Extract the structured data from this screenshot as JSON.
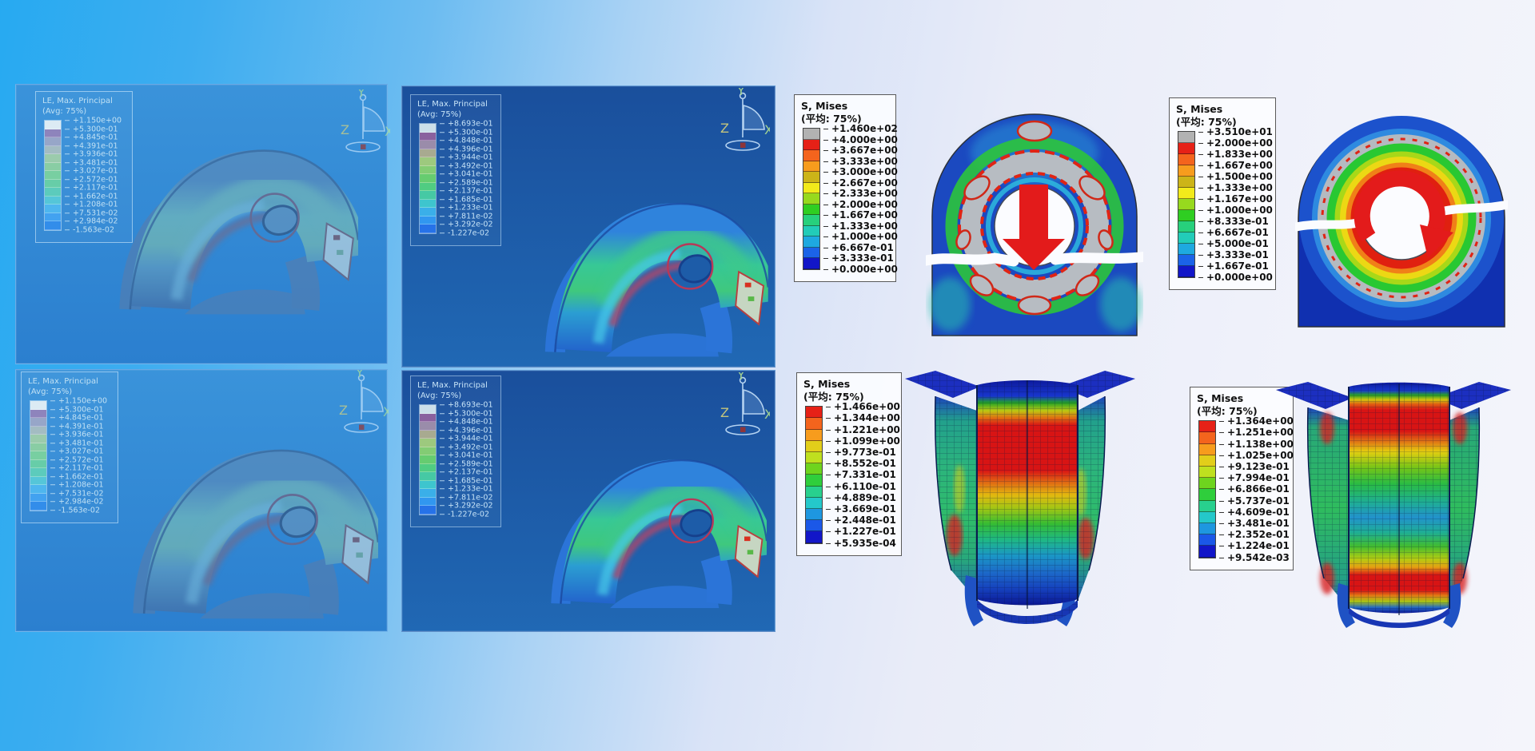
{
  "axis_triad": {
    "x": "X",
    "y": "Y",
    "z": "Z"
  },
  "viewports": [
    {
      "id": "top-left",
      "legend": {
        "title": "LE, Max. Principal",
        "subtitle": "(Avg: 75%)",
        "values": [
          "+1.150e+00",
          "+5.300e-01",
          "+4.845e-01",
          "+4.391e-01",
          "+3.936e-01",
          "+3.481e-01",
          "+3.027e-01",
          "+2.572e-01",
          "+2.117e-01",
          "+1.662e-01",
          "+1.208e-01",
          "+7.531e-02",
          "+2.984e-02",
          "-1.563e-02"
        ],
        "colors": [
          "#dcebf4",
          "#8e84bc",
          "#97a6c8",
          "#a3bcc2",
          "#9bcbac",
          "#89cda4",
          "#78cfa1",
          "#67cda8",
          "#5ccbbc",
          "#55c6d8",
          "#4eb6ee",
          "#42a2f0",
          "#328dea"
        ]
      }
    },
    {
      "id": "top-middle",
      "legend": {
        "title": "LE, Max. Principal",
        "subtitle": "(Avg: 75%)",
        "values": [
          "+8.693e-01",
          "+5.300e-01",
          "+4.848e-01",
          "+4.396e-01",
          "+3.944e-01",
          "+3.492e-01",
          "+3.041e-01",
          "+2.589e-01",
          "+2.137e-01",
          "+1.685e-01",
          "+1.233e-01",
          "+7.811e-02",
          "+3.292e-02",
          "-1.227e-02"
        ],
        "colors": [
          "#ccdfe9",
          "#8a619e",
          "#9a8caa",
          "#a8aa90",
          "#9dc97e",
          "#83cc74",
          "#66cc70",
          "#50cc82",
          "#46c9a4",
          "#3ec5ce",
          "#3aafe9",
          "#3197f0",
          "#2672e8"
        ]
      }
    },
    {
      "id": "bottom-left",
      "legend": {
        "title": "LE, Max. Principal",
        "subtitle": "(Avg: 75%)",
        "values": [
          "+1.150e+00",
          "+5.300e-01",
          "+4.845e-01",
          "+4.391e-01",
          "+3.936e-01",
          "+3.481e-01",
          "+3.027e-01",
          "+2.572e-01",
          "+2.117e-01",
          "+1.662e-01",
          "+1.208e-01",
          "+7.531e-02",
          "+2.984e-02",
          "-1.563e-02"
        ],
        "colors": [
          "#dcebf4",
          "#8e84bc",
          "#97a6c8",
          "#a3bcc2",
          "#9bcbac",
          "#89cda4",
          "#78cfa1",
          "#67cda8",
          "#5ccbbc",
          "#55c6d8",
          "#4eb6ee",
          "#42a2f0",
          "#328dea"
        ]
      }
    },
    {
      "id": "bottom-middle",
      "legend": {
        "title": "LE, Max. Principal",
        "subtitle": "(Avg: 75%)",
        "values": [
          "+8.693e-01",
          "+5.300e-01",
          "+4.848e-01",
          "+4.396e-01",
          "+3.944e-01",
          "+3.492e-01",
          "+3.041e-01",
          "+2.589e-01",
          "+2.137e-01",
          "+1.685e-01",
          "+1.233e-01",
          "+7.811e-02",
          "+3.292e-02",
          "-1.227e-02"
        ],
        "colors": [
          "#ccdfe9",
          "#8a619e",
          "#9a8caa",
          "#a8aa90",
          "#9dc97e",
          "#83cc74",
          "#66cc70",
          "#50cc82",
          "#46c9a4",
          "#3ec5ce",
          "#3aafe9",
          "#3197f0",
          "#2672e8"
        ]
      }
    }
  ],
  "mises_legends": [
    {
      "id": "arch-vertical-load",
      "title": "S, Mises",
      "subtitle": "(平均: 75%)",
      "values": [
        "+1.460e+02",
        "+4.000e+00",
        "+3.667e+00",
        "+3.333e+00",
        "+3.000e+00",
        "+2.667e+00",
        "+2.333e+00",
        "+2.000e+00",
        "+1.667e+00",
        "+1.333e+00",
        "+1.000e+00",
        "+6.667e-01",
        "+3.333e-01",
        "+0.000e+00"
      ],
      "colors": [
        "#b2b2b2",
        "#e62117",
        "#f4641d",
        "#f79c1d",
        "#ccb418",
        "#f2ea1b",
        "#97d91e",
        "#2fce22",
        "#27d07c",
        "#22ccb8",
        "#1ea9e0",
        "#1b63e8",
        "#1216c8"
      ]
    },
    {
      "id": "arch-rotation",
      "title": "S, Mises",
      "subtitle": "(平均: 75%)",
      "values": [
        "+3.510e+01",
        "+2.000e+00",
        "+1.833e+00",
        "+1.667e+00",
        "+1.500e+00",
        "+1.333e+00",
        "+1.167e+00",
        "+1.000e+00",
        "+8.333e-01",
        "+6.667e-01",
        "+5.000e-01",
        "+3.333e-01",
        "+1.667e-01",
        "+0.000e+00"
      ],
      "colors": [
        "#b2b2b2",
        "#e62117",
        "#f4641d",
        "#f79c1d",
        "#ccb418",
        "#f2ea1b",
        "#97d91e",
        "#2fce22",
        "#27d07c",
        "#22ccb8",
        "#1ea9e0",
        "#1b63e8",
        "#1216c8"
      ]
    },
    {
      "id": "column-1",
      "title": "S, Mises",
      "subtitle": "(平均: 75%)",
      "values": [
        "+1.466e+00",
        "+1.344e+00",
        "+1.221e+00",
        "+1.099e+00",
        "+9.773e-01",
        "+8.552e-01",
        "+7.331e-01",
        "+6.110e-01",
        "+4.889e-01",
        "+3.669e-01",
        "+2.448e-01",
        "+1.227e-01",
        "+5.935e-04"
      ],
      "colors": [
        "#e62117",
        "#f4641d",
        "#f79c1d",
        "#e2ce1a",
        "#bfe01f",
        "#6ed41e",
        "#2fce3c",
        "#28d08e",
        "#24c8ca",
        "#1e97e0",
        "#1b58e8",
        "#1216c8"
      ]
    },
    {
      "id": "column-2",
      "title": "S, Mises",
      "subtitle": "(平均: 75%)",
      "values": [
        "+1.364e+00",
        "+1.251e+00",
        "+1.138e+00",
        "+1.025e+00",
        "+9.123e-01",
        "+7.994e-01",
        "+6.866e-01",
        "+5.737e-01",
        "+4.609e-01",
        "+3.481e-01",
        "+2.352e-01",
        "+1.224e-01",
        "+9.542e-03"
      ],
      "colors": [
        "#e62117",
        "#f4641d",
        "#f79c1d",
        "#e2ce1a",
        "#bfe01f",
        "#6ed41e",
        "#2fce3c",
        "#28d08e",
        "#24c8ca",
        "#1e97e0",
        "#1b58e8",
        "#1216c8"
      ]
    }
  ],
  "annotations": {
    "load_icon": "down-arrow-icon",
    "rotation_icon": "rotation-arrow-icon"
  }
}
